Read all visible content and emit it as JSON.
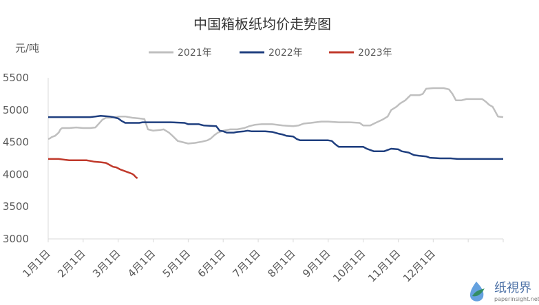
{
  "chart_data": {
    "type": "line",
    "title": "中国箱板纸均价走势图",
    "ylabel": "元/吨",
    "ylim": [
      3000,
      5500
    ],
    "yticks": [
      3000,
      3500,
      4000,
      4500,
      5000,
      5500
    ],
    "categories": [
      "1月1日",
      "2月1日",
      "3月1日",
      "4月1日",
      "5月1日",
      "6月1日",
      "7月1日",
      "8月1日",
      "9月1日",
      "10月1日",
      "11月1日",
      "12月1日"
    ],
    "grid": false,
    "legend_position": "top",
    "series": [
      {
        "name": "2021年",
        "color": "#bfbfbf",
        "points": [
          [
            0,
            4550
          ],
          [
            0.05,
            4560
          ],
          [
            0.1,
            4580
          ],
          [
            0.2,
            4600
          ],
          [
            0.3,
            4650
          ],
          [
            0.35,
            4700
          ],
          [
            0.4,
            4720
          ],
          [
            0.6,
            4720
          ],
          [
            0.8,
            4730
          ],
          [
            1.0,
            4720
          ],
          [
            1.2,
            4720
          ],
          [
            1.35,
            4730
          ],
          [
            1.55,
            4850
          ],
          [
            1.65,
            4880
          ],
          [
            1.8,
            4880
          ],
          [
            2.0,
            4900
          ],
          [
            2.2,
            4900
          ],
          [
            2.4,
            4880
          ],
          [
            2.6,
            4870
          ],
          [
            2.75,
            4860
          ],
          [
            2.85,
            4700
          ],
          [
            3.0,
            4680
          ],
          [
            3.2,
            4690
          ],
          [
            3.3,
            4700
          ],
          [
            3.45,
            4650
          ],
          [
            3.55,
            4600
          ],
          [
            3.7,
            4520
          ],
          [
            3.85,
            4500
          ],
          [
            4.0,
            4480
          ],
          [
            4.2,
            4490
          ],
          [
            4.4,
            4510
          ],
          [
            4.55,
            4530
          ],
          [
            4.65,
            4560
          ],
          [
            4.75,
            4610
          ],
          [
            4.85,
            4650
          ],
          [
            5.0,
            4680
          ],
          [
            5.2,
            4700
          ],
          [
            5.4,
            4700
          ],
          [
            5.6,
            4720
          ],
          [
            5.75,
            4750
          ],
          [
            5.9,
            4770
          ],
          [
            6.1,
            4780
          ],
          [
            6.4,
            4780
          ],
          [
            6.7,
            4760
          ],
          [
            7.0,
            4750
          ],
          [
            7.15,
            4760
          ],
          [
            7.3,
            4790
          ],
          [
            7.5,
            4800
          ],
          [
            7.8,
            4820
          ],
          [
            8.0,
            4820
          ],
          [
            8.3,
            4810
          ],
          [
            8.6,
            4810
          ],
          [
            8.9,
            4800
          ],
          [
            9.0,
            4760
          ],
          [
            9.2,
            4760
          ],
          [
            9.35,
            4800
          ],
          [
            9.55,
            4850
          ],
          [
            9.7,
            4900
          ],
          [
            9.8,
            5000
          ],
          [
            9.95,
            5050
          ],
          [
            10.05,
            5100
          ],
          [
            10.2,
            5150
          ],
          [
            10.35,
            5230
          ],
          [
            10.6,
            5230
          ],
          [
            10.7,
            5250
          ],
          [
            10.8,
            5330
          ],
          [
            11.0,
            5340
          ],
          [
            11.3,
            5340
          ],
          [
            11.45,
            5320
          ],
          [
            11.55,
            5250
          ],
          [
            11.65,
            5150
          ],
          [
            11.8,
            5150
          ],
          [
            11.95,
            5170
          ],
          [
            12.1,
            5170
          ],
          [
            12.4,
            5170
          ],
          [
            12.5,
            5130
          ],
          [
            12.6,
            5080
          ],
          [
            12.7,
            5050
          ],
          [
            12.75,
            5000
          ],
          [
            12.85,
            4900
          ],
          [
            13.0,
            4890
          ]
        ]
      },
      {
        "name": "2022年",
        "color": "#1f3f7f",
        "points": [
          [
            0,
            4890
          ],
          [
            0.5,
            4890
          ],
          [
            1.0,
            4890
          ],
          [
            1.2,
            4890
          ],
          [
            1.35,
            4900
          ],
          [
            1.5,
            4910
          ],
          [
            1.75,
            4900
          ],
          [
            1.85,
            4890
          ],
          [
            2.0,
            4870
          ],
          [
            2.1,
            4830
          ],
          [
            2.2,
            4800
          ],
          [
            2.6,
            4800
          ],
          [
            2.7,
            4810
          ],
          [
            3.0,
            4810
          ],
          [
            3.5,
            4810
          ],
          [
            3.9,
            4800
          ],
          [
            4.0,
            4780
          ],
          [
            4.3,
            4780
          ],
          [
            4.45,
            4760
          ],
          [
            4.8,
            4750
          ],
          [
            4.9,
            4680
          ],
          [
            5.0,
            4670
          ],
          [
            5.1,
            4650
          ],
          [
            5.3,
            4650
          ],
          [
            5.4,
            4660
          ],
          [
            5.6,
            4670
          ],
          [
            5.7,
            4680
          ],
          [
            5.8,
            4670
          ],
          [
            6.2,
            4670
          ],
          [
            6.4,
            4660
          ],
          [
            6.6,
            4630
          ],
          [
            6.7,
            4620
          ],
          [
            6.8,
            4600
          ],
          [
            7.0,
            4590
          ],
          [
            7.1,
            4550
          ],
          [
            7.2,
            4530
          ],
          [
            7.6,
            4530
          ],
          [
            8.0,
            4530
          ],
          [
            8.1,
            4520
          ],
          [
            8.2,
            4470
          ],
          [
            8.3,
            4430
          ],
          [
            8.8,
            4430
          ],
          [
            9.0,
            4430
          ],
          [
            9.1,
            4400
          ],
          [
            9.2,
            4380
          ],
          [
            9.3,
            4360
          ],
          [
            9.6,
            4360
          ],
          [
            9.7,
            4380
          ],
          [
            9.8,
            4400
          ],
          [
            10.0,
            4390
          ],
          [
            10.1,
            4360
          ],
          [
            10.3,
            4340
          ],
          [
            10.45,
            4300
          ],
          [
            10.6,
            4290
          ],
          [
            10.8,
            4280
          ],
          [
            10.9,
            4260
          ],
          [
            11.2,
            4250
          ],
          [
            11.5,
            4250
          ],
          [
            11.7,
            4240
          ],
          [
            12.0,
            4240
          ],
          [
            12.5,
            4240
          ],
          [
            13.0,
            4240
          ]
        ]
      },
      {
        "name": "2023年",
        "color": "#c0392b",
        "points": [
          [
            0,
            4240
          ],
          [
            0.3,
            4240
          ],
          [
            0.45,
            4230
          ],
          [
            0.6,
            4220
          ],
          [
            0.9,
            4220
          ],
          [
            1.1,
            4220
          ],
          [
            1.2,
            4210
          ],
          [
            1.3,
            4200
          ],
          [
            1.5,
            4190
          ],
          [
            1.65,
            4180
          ],
          [
            1.75,
            4150
          ],
          [
            1.85,
            4120
          ],
          [
            1.95,
            4110
          ],
          [
            2.05,
            4080
          ],
          [
            2.15,
            4060
          ],
          [
            2.3,
            4030
          ],
          [
            2.4,
            4010
          ],
          [
            2.45,
            3990
          ],
          [
            2.5,
            3960
          ],
          [
            2.55,
            3940
          ]
        ]
      }
    ]
  },
  "watermark": {
    "logo_text": "纸視界",
    "url": "paperinsight.net",
    "icon": "leaf-drop-icon",
    "colors": [
      "#2e8b57",
      "#4a90d9"
    ]
  }
}
